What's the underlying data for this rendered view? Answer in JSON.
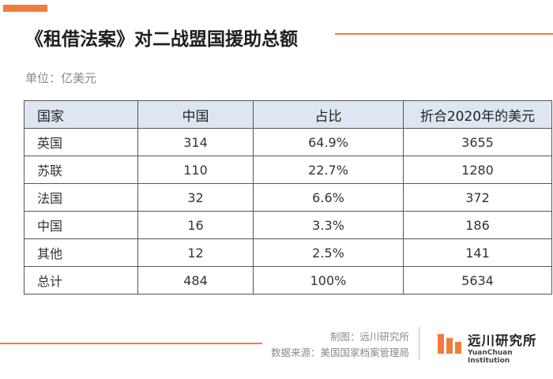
{
  "title": "《租借法案》对二战盟国援助总额",
  "unit": "单位：亿美元",
  "table": {
    "headers": [
      "国家",
      "中国",
      "占比",
      "折合2020年的美元"
    ],
    "rows": [
      [
        "英国",
        "314",
        "64.9%",
        "3655"
      ],
      [
        "苏联",
        "110",
        "22.7%",
        "1280"
      ],
      [
        "法国",
        "32",
        "6.6%",
        "372"
      ],
      [
        "中国",
        "16",
        "3.3%",
        "186"
      ],
      [
        "其他",
        "12",
        "2.5%",
        "141"
      ],
      [
        "总计",
        "484",
        "100%",
        "5634"
      ]
    ]
  },
  "footer": {
    "credit_maker": "制图：远川研究所",
    "credit_source": "数据来源：美国国家档案管理局",
    "logo_name": "远川研究所",
    "logo_en": "YuanChuan Institution"
  },
  "colors": {
    "accent": "#f07d3c",
    "header_bg": "#dde6f1"
  }
}
